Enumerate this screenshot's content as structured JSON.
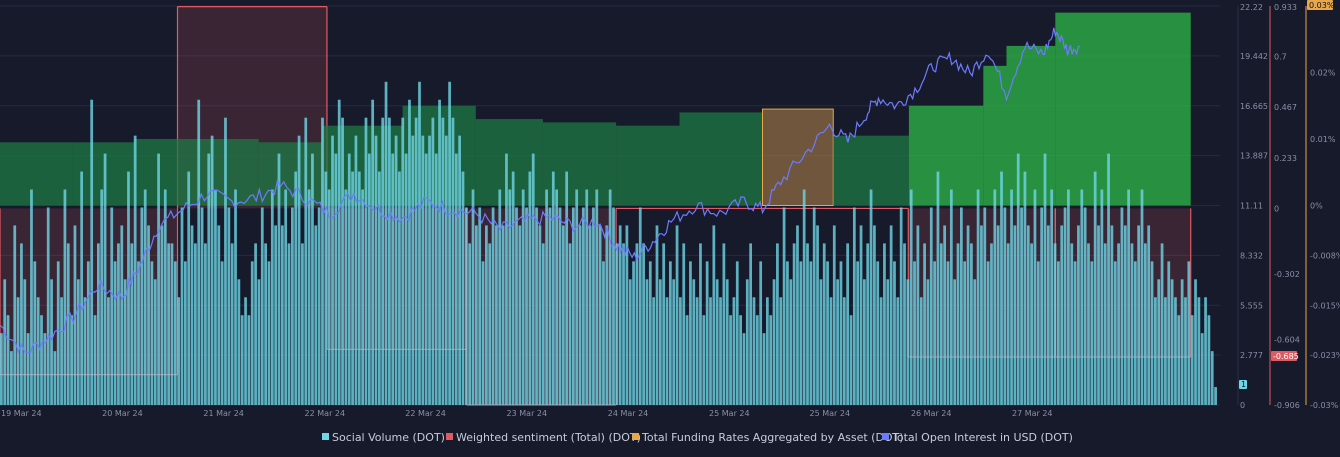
{
  "chart_data": {
    "type": "bar",
    "title": "",
    "x": {
      "ticks": [
        "19 Mar 24",
        "20 Mar 24",
        "21 Mar 24",
        "22 Mar 24",
        "22 Mar 24",
        "23 Mar 24",
        "24 Mar 24",
        "25 Mar 24",
        "25 Mar 24",
        "26 Mar 24",
        "27 Mar 24"
      ],
      "tick_pos": [
        0.0,
        0.0826,
        0.1652,
        0.2478,
        0.33,
        0.4127,
        0.4953,
        0.578,
        0.66,
        0.7428,
        0.8253
      ]
    },
    "axes": {
      "social_volume": {
        "ticks": [
          "22.22",
          "19.442",
          "16.665",
          "13.887",
          "11.11",
          "8.332",
          "5.555",
          "2.777",
          "0"
        ],
        "ylim": [
          0,
          22.22
        ],
        "current_value_label": "1"
      },
      "sentiment": {
        "ticks": [
          "0.933",
          "0.7",
          "0.467",
          "0.233",
          "0",
          "-0.302",
          "-0.604",
          "-0.906"
        ],
        "tick_values": [
          0.933,
          0.7,
          0.467,
          0.233,
          0,
          -0.302,
          -0.604,
          -0.906
        ],
        "ylim": [
          -0.906,
          0.933
        ],
        "current_value_label": "-0.685"
      },
      "funding": {
        "ticks": [
          "0.03%",
          "0.02%",
          "0.01%",
          "0%",
          "-0.008%",
          "-0.015%",
          "-0.023%",
          "-0.03%"
        ],
        "tick_values": [
          0.03,
          0.02,
          0.01,
          0,
          -0.0075,
          -0.015,
          -0.0225,
          -0.03
        ],
        "ylim": [
          -0.03,
          0.03
        ],
        "current_value_label": "0.03%"
      }
    },
    "series": [
      {
        "name": "Social Volume (DOT)",
        "type": "bar",
        "color": "#6fd6e6",
        "values": [
          4,
          7,
          5,
          3,
          10,
          6,
          9,
          7,
          4,
          12,
          8,
          6,
          5,
          4,
          11,
          7,
          3,
          8,
          6,
          12,
          9,
          5,
          10,
          7,
          13,
          6,
          8,
          17,
          5,
          9,
          12,
          14,
          6,
          11,
          8,
          9,
          10,
          7,
          13,
          9,
          15,
          8,
          11,
          12,
          10,
          8,
          7,
          14,
          10,
          12,
          9,
          9,
          8,
          6,
          11,
          8,
          13,
          10,
          9,
          17,
          11,
          9,
          14,
          15,
          12,
          10,
          8,
          16,
          11,
          9,
          12,
          7,
          5,
          6,
          5,
          8,
          9,
          7,
          11,
          9,
          8,
          12,
          10,
          14,
          10,
          12,
          9,
          11,
          13,
          15,
          9,
          16,
          12,
          14,
          10,
          11,
          16,
          13,
          12,
          15,
          14,
          17,
          16,
          12,
          14,
          13,
          15,
          13,
          12,
          16,
          14,
          17,
          15,
          13,
          16,
          18,
          16,
          14,
          15,
          13,
          16,
          14,
          17,
          15,
          16,
          18,
          15,
          14,
          15,
          16,
          14,
          17,
          16,
          15,
          18,
          16,
          14,
          15,
          13,
          11,
          9,
          12,
          10,
          11,
          8,
          10,
          9,
          11,
          10,
          12,
          10,
          14,
          12,
          13,
          11,
          10,
          12,
          11,
          13,
          14,
          11,
          10,
          9,
          12,
          11,
          13,
          12,
          11,
          10,
          13,
          9,
          11,
          12,
          10,
          11,
          12,
          10,
          11,
          12,
          10,
          8,
          10,
          12,
          11,
          9,
          10,
          9,
          10,
          7,
          8,
          9,
          11,
          9,
          7,
          8,
          6,
          10,
          7,
          9,
          6,
          8,
          7,
          10,
          6,
          9,
          5,
          8,
          7,
          6,
          9,
          5,
          8,
          6,
          10,
          7,
          6,
          9,
          7,
          5,
          6,
          8,
          5,
          4,
          7,
          9,
          6,
          5,
          8,
          4,
          6,
          5,
          7,
          9,
          6,
          11,
          8,
          7,
          9,
          10,
          8,
          12,
          9,
          8,
          11,
          10,
          7,
          9,
          8,
          6,
          10,
          7,
          8,
          6,
          9,
          5,
          11,
          8,
          10,
          7,
          9,
          12,
          10,
          8,
          6,
          9,
          7,
          10,
          8,
          6,
          11,
          9,
          7,
          12,
          8,
          10,
          6,
          9,
          7,
          11,
          8,
          13,
          9,
          10,
          8,
          12,
          7,
          9,
          11,
          8,
          10,
          9,
          7,
          12,
          10,
          11,
          8,
          9,
          12,
          10,
          13,
          11,
          9,
          12,
          10,
          14,
          11,
          13,
          10,
          9,
          12,
          8,
          11,
          14,
          10,
          12,
          9,
          8,
          10,
          11,
          12,
          9,
          8,
          10,
          12,
          11,
          9,
          8,
          13,
          10,
          12,
          9,
          14,
          10,
          8,
          9,
          11,
          10,
          12,
          9,
          8,
          10,
          12,
          9,
          10,
          8,
          6,
          7,
          9,
          6,
          8,
          7,
          6,
          5,
          7,
          6,
          8,
          5,
          7,
          6,
          4,
          6,
          5,
          3,
          1
        ]
      },
      {
        "name": "Weighted sentiment (Total) (DOT)",
        "type": "step-area",
        "color": "#e05a64",
        "x": [
          0.0,
          0.1455,
          0.268,
          0.3825,
          0.505,
          0.6225,
          0.7445,
          0.865
        ],
        "values": [
          -0.766,
          0.93,
          -0.65,
          -0.906,
          0.0,
          0.0,
          -0.685,
          -0.685
        ]
      },
      {
        "name": "Total Funding Rates Aggregated by Asset (DOT)",
        "type": "bar",
        "color": "#e8a74a",
        "x": [
          0.0,
          0.06,
          0.11,
          0.212,
          0.264,
          0.33,
          0.39,
          0.445,
          0.505,
          0.557,
          0.625,
          0.683,
          0.745,
          0.806,
          0.825,
          0.865
        ],
        "values": [
          0.0095,
          0.0095,
          0.01,
          0.0095,
          0.012,
          0.015,
          0.013,
          0.0125,
          0.012,
          0.014,
          0.0145,
          0.0105,
          0.015,
          0.021,
          0.024,
          0.029
        ]
      },
      {
        "name": "Total Open Interest in USD (DOT)",
        "type": "line",
        "color": "#6d7bff",
        "anchors": [
          [
            0,
            0.2
          ],
          [
            0.02,
            0.13
          ],
          [
            0.04,
            0.17
          ],
          [
            0.06,
            0.22
          ],
          [
            0.08,
            0.3
          ],
          [
            0.1,
            0.27
          ],
          [
            0.115,
            0.35
          ],
          [
            0.13,
            0.45
          ],
          [
            0.15,
            0.49
          ],
          [
            0.17,
            0.53
          ],
          [
            0.19,
            0.51
          ],
          [
            0.21,
            0.52
          ],
          [
            0.23,
            0.55
          ],
          [
            0.25,
            0.52
          ],
          [
            0.27,
            0.48
          ],
          [
            0.29,
            0.53
          ],
          [
            0.31,
            0.49
          ],
          [
            0.33,
            0.47
          ],
          [
            0.35,
            0.51
          ],
          [
            0.37,
            0.49
          ],
          [
            0.39,
            0.48
          ],
          [
            0.41,
            0.44
          ],
          [
            0.43,
            0.46
          ],
          [
            0.45,
            0.47
          ],
          [
            0.47,
            0.45
          ],
          [
            0.49,
            0.46
          ],
          [
            0.505,
            0.4
          ],
          [
            0.52,
            0.37
          ],
          [
            0.535,
            0.41
          ],
          [
            0.55,
            0.46
          ],
          [
            0.57,
            0.5
          ],
          [
            0.59,
            0.48
          ],
          [
            0.61,
            0.51
          ],
          [
            0.625,
            0.49
          ],
          [
            0.64,
            0.56
          ],
          [
            0.66,
            0.63
          ],
          [
            0.68,
            0.7
          ],
          [
            0.695,
            0.66
          ],
          [
            0.71,
            0.73
          ],
          [
            0.72,
            0.77
          ],
          [
            0.735,
            0.75
          ],
          [
            0.75,
            0.79
          ],
          [
            0.765,
            0.85
          ],
          [
            0.78,
            0.87
          ],
          [
            0.795,
            0.83
          ],
          [
            0.81,
            0.89
          ],
          [
            0.825,
            0.78
          ],
          [
            0.84,
            0.9
          ],
          [
            0.855,
            0.88
          ],
          [
            0.865,
            0.94
          ],
          [
            0.875,
            0.89
          ],
          [
            0.885,
            0.9
          ]
        ]
      }
    ],
    "legend": {
      "position": "bottom",
      "items": [
        {
          "label": "Social Volume (DOT)",
          "color": "#6fd6e6"
        },
        {
          "label": "Weighted sentiment (Total) (DOT)",
          "color": "#e05a64"
        },
        {
          "label": "Total Funding Rates Aggregated by Asset (DOT)",
          "color": "#e8a74a"
        },
        {
          "label": "Total Open Interest in USD (DOT)",
          "color": "#6d7bff"
        }
      ]
    },
    "grid": true
  }
}
